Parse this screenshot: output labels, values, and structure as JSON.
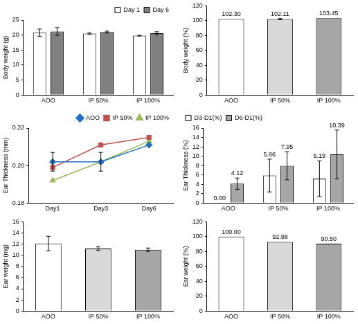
{
  "chart_data": [
    {
      "type": "bar",
      "y_label": "Body weight (g)",
      "categories": [
        "AOO",
        "IP 50%",
        "IP 100%"
      ],
      "series": [
        {
          "name": "Day 1",
          "color": "#ffffff",
          "values": [
            20.8,
            20.5,
            19.8
          ],
          "errors": [
            1.2,
            0.2,
            0.1
          ]
        },
        {
          "name": "Day 6",
          "color": "#808080",
          "values": [
            21.2,
            21.0,
            20.6
          ],
          "errors": [
            1.3,
            0.3,
            0.5
          ]
        }
      ],
      "ylim": [
        0,
        25
      ],
      "yticks": [
        0,
        5,
        10,
        15,
        20,
        25
      ],
      "grid": false,
      "legend": "top-right"
    },
    {
      "type": "bar",
      "y_label": "Body weight (%)",
      "categories": [
        "AOO",
        "IP 50%",
        "IP 100%"
      ],
      "values": [
        102.3,
        102.11,
        103.45
      ],
      "value_labels": [
        "102.30",
        "102.11",
        "103.45"
      ],
      "errors": [
        0,
        0.8,
        0
      ],
      "colors": [
        "#ffffff",
        "#d9d9d9",
        "#a6a6a6"
      ],
      "ylim": [
        0,
        120
      ],
      "yticks": [
        0,
        20,
        40,
        60,
        80,
        100,
        120
      ],
      "grid": false,
      "data_labels": true
    },
    {
      "type": "line",
      "y_label": "Ear Thickness (mm)",
      "categories": [
        "Day1",
        "Day3",
        "Day6"
      ],
      "series": [
        {
          "name": "AOO",
          "color": "#1f6fc5",
          "marker": "diamond",
          "values": [
            0.202,
            0.202,
            0.211
          ],
          "errors": [
            0.005,
            0.005,
            null
          ]
        },
        {
          "name": "IP 50%",
          "color": "#c0504d",
          "marker": "square",
          "values": [
            0.199,
            0.211,
            0.215
          ]
        },
        {
          "name": "IP 100%",
          "color": "#9bbb59",
          "marker": "triangle",
          "values": [
            0.192,
            0.202,
            0.213
          ]
        }
      ],
      "ylim": [
        0.18,
        0.22
      ],
      "yticks": [
        {
          "value": 0.18,
          "label": "0.18"
        },
        {
          "value": 0.2,
          "label": "0.20"
        },
        {
          "value": 0.22,
          "label": "0.22"
        }
      ],
      "grid": false,
      "legend": "top-right"
    },
    {
      "type": "bar",
      "y_label": "Ear Thickness (%)",
      "categories": [
        "AOO",
        "IP 50%",
        "IP 100%"
      ],
      "series": [
        {
          "name": "D3-D1(%)",
          "color": "#ffffff",
          "values": [
            0.0,
            5.86,
            5.19
          ],
          "value_labels": [
            "0.00",
            "5.86",
            "5.19"
          ],
          "errors": [
            0,
            3.5,
            3.8
          ]
        },
        {
          "name": "D6-D1(%)",
          "color": "#a6a6a6",
          "values": [
            4.12,
            7.95,
            10.39
          ],
          "value_labels": [
            "4.12",
            "7.95",
            "10.39"
          ],
          "errors": [
            1.2,
            3.0,
            5.2
          ]
        }
      ],
      "ylim": [
        0,
        16
      ],
      "yticks": [
        0,
        2,
        4,
        6,
        8,
        10,
        12,
        14,
        16
      ],
      "grid": false,
      "legend": "top-left",
      "data_labels": true
    },
    {
      "type": "bar",
      "y_label": "Ear weight (mg)",
      "categories": [
        "AOO",
        "IP 50%",
        "IP 100%"
      ],
      "values": [
        12.1,
        11.2,
        11.0
      ],
      "errors": [
        1.3,
        0.3,
        0.3
      ],
      "colors": [
        "#ffffff",
        "#d9d9d9",
        "#a6a6a6"
      ],
      "ylim": [
        0,
        16
      ],
      "yticks": [
        0,
        2,
        4,
        6,
        8,
        10,
        12,
        14,
        16
      ],
      "grid": false
    },
    {
      "type": "bar",
      "y_label": "Ear weight (%)",
      "categories": [
        "AOO",
        "IP 50%",
        "IP 100%"
      ],
      "values": [
        100.0,
        92.98,
        90.5
      ],
      "value_labels": [
        "100.00",
        "92.98",
        "90.50"
      ],
      "colors": [
        "#ffffff",
        "#d9d9d9",
        "#a6a6a6"
      ],
      "ylim": [
        0,
        120
      ],
      "yticks": [
        0,
        20,
        40,
        60,
        80,
        100,
        120
      ],
      "grid": false,
      "data_labels": true
    }
  ]
}
